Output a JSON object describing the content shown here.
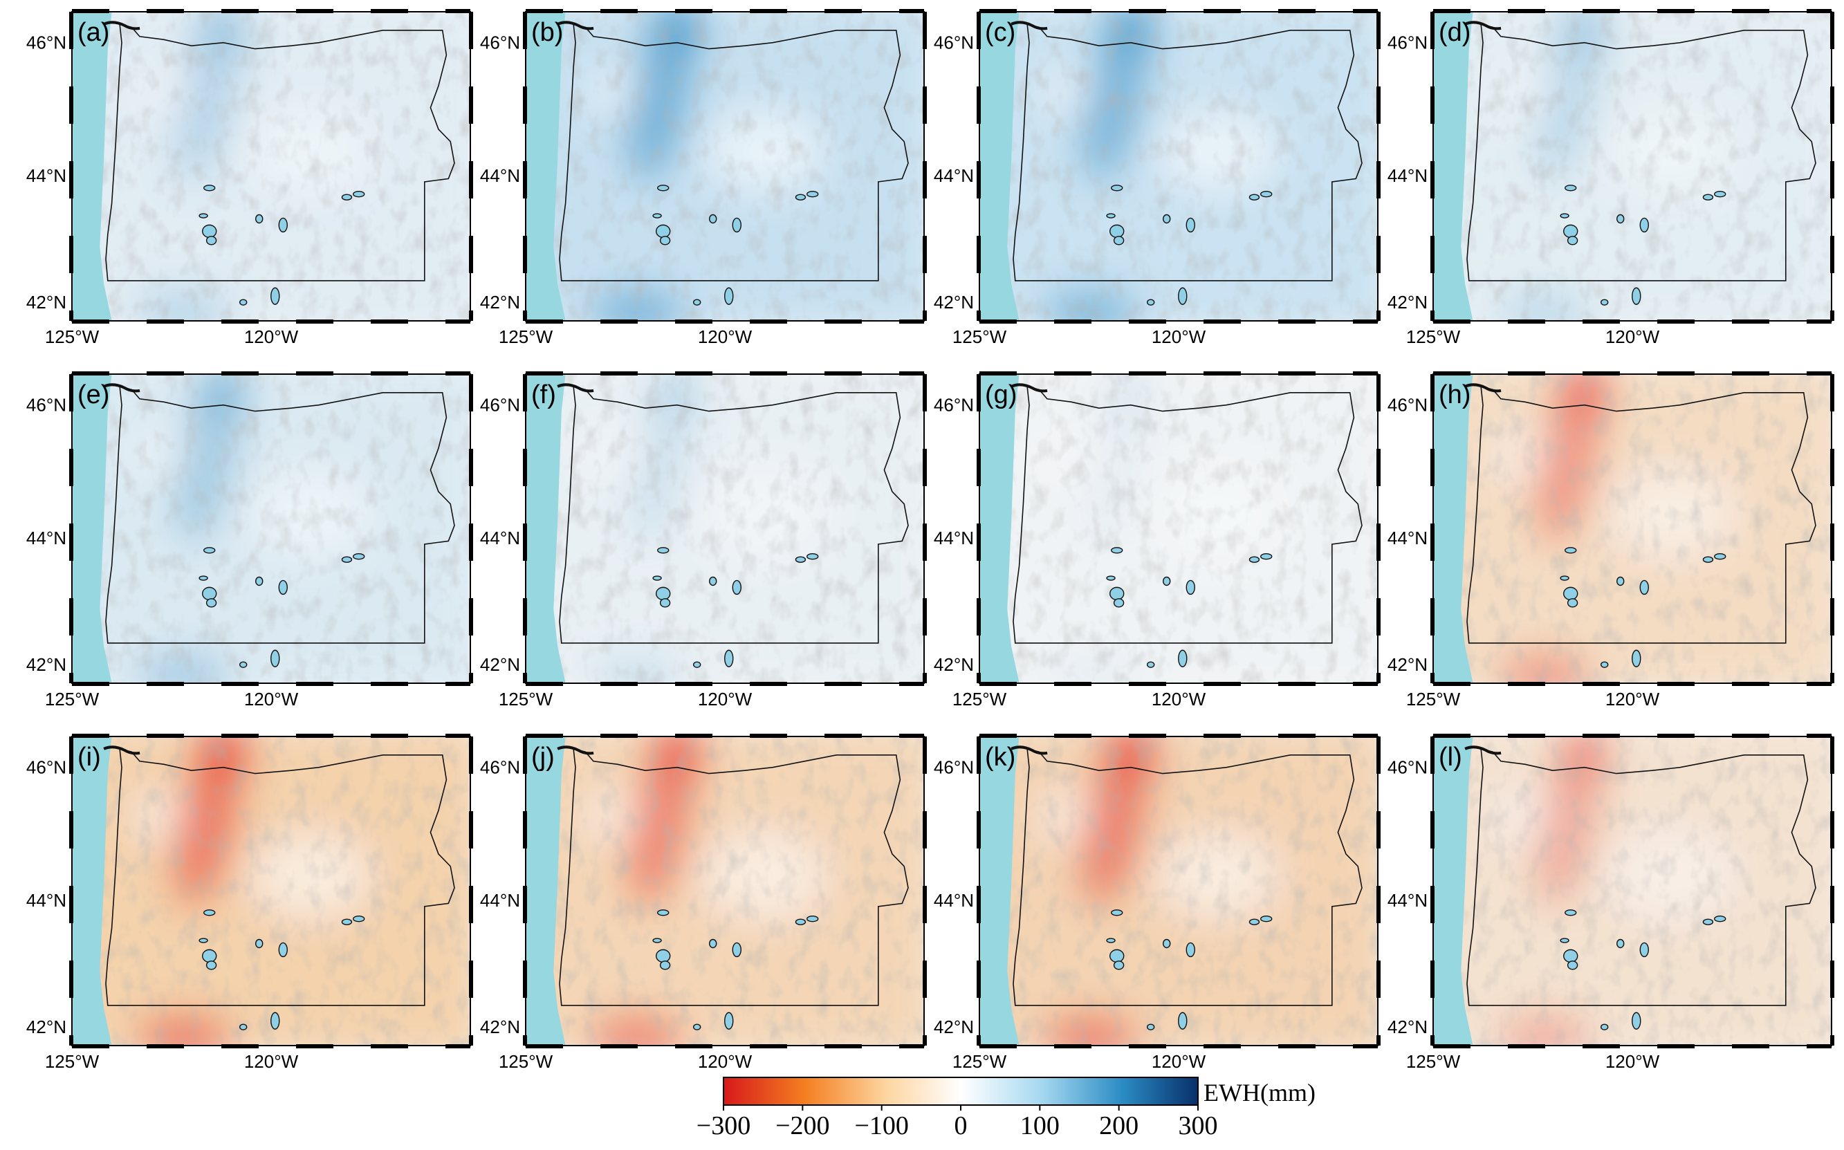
{
  "figure": {
    "panels": [
      {
        "label": "(a)",
        "pattern": "wet",
        "intensity": 0.35
      },
      {
        "label": "(b)",
        "pattern": "wet",
        "intensity": 0.8
      },
      {
        "label": "(c)",
        "pattern": "wet",
        "intensity": 0.75
      },
      {
        "label": "(d)",
        "pattern": "wet",
        "intensity": 0.3
      },
      {
        "label": "(e)",
        "pattern": "wet",
        "intensity": 0.45
      },
      {
        "label": "(f)",
        "pattern": "wet",
        "intensity": 0.2
      },
      {
        "label": "(g)",
        "pattern": "wet",
        "intensity": 0.08
      },
      {
        "label": "(h)",
        "pattern": "dry",
        "intensity": 0.6
      },
      {
        "label": "(i)",
        "pattern": "dry",
        "intensity": 0.85
      },
      {
        "label": "(j)",
        "pattern": "dry",
        "intensity": 0.75
      },
      {
        "label": "(k)",
        "pattern": "dry",
        "intensity": 0.8
      },
      {
        "label": "(l)",
        "pattern": "dry",
        "intensity": 0.45
      }
    ],
    "lat_ticks": [
      "46°N",
      "44°N",
      "42°N"
    ],
    "lon_ticks": [
      "125°W",
      "120°W"
    ],
    "colorbar": {
      "title": "EWH(mm)",
      "tick_labels": [
        "−300",
        "−200",
        "−100",
        "0",
        "100",
        "200",
        "300"
      ],
      "range": [
        -300,
        300
      ],
      "colors": [
        "#d7191c",
        "#f47e20",
        "#fdd49e",
        "#ffffff",
        "#a6d8f0",
        "#2b8cc4",
        "#08306b"
      ]
    },
    "ocean_color": "#96d7e0"
  }
}
